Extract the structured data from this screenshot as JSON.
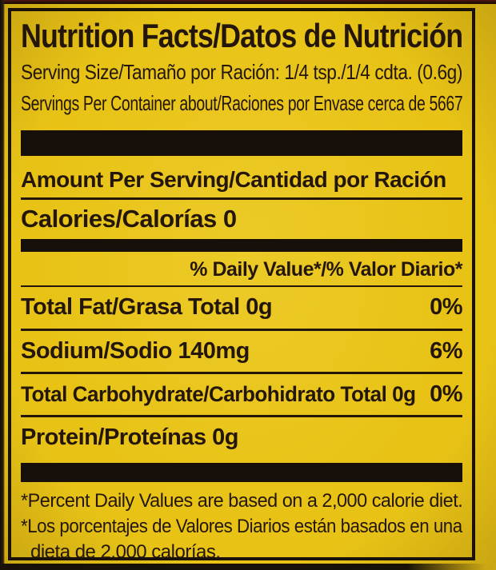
{
  "colors": {
    "background": "#e8c316",
    "text": "#241709",
    "bar": "#17100a",
    "border": "#1a1208"
  },
  "label": {
    "title": "Nutrition Facts/Datos de Nutrición",
    "serving_size_line": "Serving Size/Tamaño por Ración: 1/4 tsp./1/4 cdta. (0.6g)",
    "servings_per_container_line": "Servings Per Container about/Raciones por Envase cerca de 5667",
    "amount_per_serving_heading": "Amount Per Serving/Cantidad por Ración",
    "calories_line": "Calories/Calorías 0",
    "daily_value_heading": "% Daily Value*/% Valor Diario*",
    "nutrient_rows": [
      {
        "name": "Total Fat/Grasa Total 0g",
        "daily_value": "0%"
      },
      {
        "name": "Sodium/Sodio 140mg",
        "daily_value": "6%"
      },
      {
        "name": "Total Carbohydrate/Carbohidrato Total 0g",
        "daily_value": "0%"
      },
      {
        "name": "Protein/Proteínas 0g",
        "daily_value": ""
      }
    ],
    "footnote_lines": [
      "*Percent Daily Values are based on a 2,000 calorie diet.",
      "*Los porcentajes de Valores Diarios están basados en una",
      "dieta de 2,000 calorías."
    ]
  }
}
